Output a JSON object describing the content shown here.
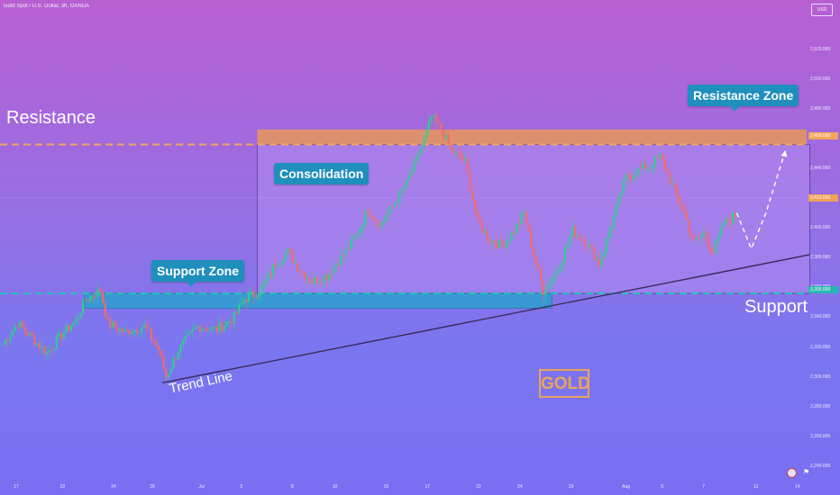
{
  "symbol_title": "Gold Spot / U.S. Dollar, 3h, OANDA",
  "currency_badge": "USD",
  "colors": {
    "bg_top": "#b85fd2",
    "bg_bottom": "#7b6ef2",
    "resistance_zone": "#e8975a",
    "support_zone": "#2b9fd0",
    "consolidation_fill": "#b38cf3",
    "candle_up": "#2ecf8f",
    "candle_down": "#f26b6b",
    "dash_resistance": "#f2a65e",
    "dash_support": "#27c0b8"
  },
  "annotations": {
    "resistance": "Resistance",
    "support": "Support",
    "consolidation": "Consolidation",
    "support_zone": "Support Zone",
    "resistance_zone": "Resistance Zone",
    "trend_line": "Trend Line",
    "gold": "GOLD"
  },
  "price_tags": {
    "resistance_price": "2,450.000",
    "current_price": "2,410.000",
    "support_price": "2,355.000"
  },
  "chart_data": {
    "type": "candlestick",
    "ylim": [
      2240,
      2530
    ],
    "y_ticks": [
      {
        "value": 2520,
        "label": "2,520.000"
      },
      {
        "value": 2500,
        "label": "2,500.000"
      },
      {
        "value": 2480,
        "label": "2,480.000"
      },
      {
        "value": 2460,
        "label": "2,460.000"
      },
      {
        "value": 2440,
        "label": "2,440.000"
      },
      {
        "value": 2420,
        "label": "2,420.000"
      },
      {
        "value": 2400,
        "label": "2,400.000"
      },
      {
        "value": 2380,
        "label": "2,380.000"
      },
      {
        "value": 2360,
        "label": "2,360.000"
      },
      {
        "value": 2340,
        "label": "2,340.000"
      },
      {
        "value": 2320,
        "label": "2,320.000"
      },
      {
        "value": 2300,
        "label": "2,300.000"
      },
      {
        "value": 2280,
        "label": "2,280.000"
      },
      {
        "value": 2260,
        "label": "2,260.000"
      },
      {
        "value": 2240,
        "label": "2,240.000"
      }
    ],
    "x_ticks": [
      {
        "bar": 6,
        "label": "17"
      },
      {
        "bar": 25,
        "label": "19"
      },
      {
        "bar": 46,
        "label": "24"
      },
      {
        "bar": 62,
        "label": "26"
      },
      {
        "bar": 82,
        "label": "Jul"
      },
      {
        "bar": 99,
        "label": "3"
      },
      {
        "bar": 120,
        "label": "8"
      },
      {
        "bar": 137,
        "label": "10"
      },
      {
        "bar": 158,
        "label": "15"
      },
      {
        "bar": 175,
        "label": "17"
      },
      {
        "bar": 196,
        "label": "22"
      },
      {
        "bar": 213,
        "label": "24"
      },
      {
        "bar": 234,
        "label": "29"
      },
      {
        "bar": 256,
        "label": "Aug"
      },
      {
        "bar": 272,
        "label": "5"
      },
      {
        "bar": 289,
        "label": "7"
      },
      {
        "bar": 310,
        "label": "12"
      },
      {
        "bar": 327,
        "label": "14"
      }
    ],
    "anchors": [
      [
        0,
        2322
      ],
      [
        6,
        2336
      ],
      [
        12,
        2326
      ],
      [
        18,
        2316
      ],
      [
        25,
        2330
      ],
      [
        30,
        2338
      ],
      [
        34,
        2352
      ],
      [
        40,
        2358
      ],
      [
        43,
        2336
      ],
      [
        50,
        2330
      ],
      [
        58,
        2334
      ],
      [
        64,
        2318
      ],
      [
        67,
        2300
      ],
      [
        72,
        2318
      ],
      [
        80,
        2334
      ],
      [
        88,
        2332
      ],
      [
        95,
        2340
      ],
      [
        99,
        2352
      ],
      [
        106,
        2358
      ],
      [
        112,
        2376
      ],
      [
        117,
        2384
      ],
      [
        122,
        2372
      ],
      [
        127,
        2364
      ],
      [
        133,
        2368
      ],
      [
        140,
        2382
      ],
      [
        145,
        2394
      ],
      [
        150,
        2412
      ],
      [
        155,
        2402
      ],
      [
        160,
        2414
      ],
      [
        166,
        2430
      ],
      [
        172,
        2454
      ],
      [
        176,
        2474
      ],
      [
        180,
        2466
      ],
      [
        184,
        2452
      ],
      [
        190,
        2444
      ],
      [
        195,
        2404
      ],
      [
        200,
        2392
      ],
      [
        205,
        2388
      ],
      [
        210,
        2398
      ],
      [
        214,
        2410
      ],
      [
        218,
        2382
      ],
      [
        222,
        2358
      ],
      [
        228,
        2372
      ],
      [
        234,
        2398
      ],
      [
        240,
        2390
      ],
      [
        245,
        2376
      ],
      [
        250,
        2402
      ],
      [
        256,
        2434
      ],
      [
        260,
        2438
      ],
      [
        266,
        2442
      ],
      [
        270,
        2448
      ],
      [
        273,
        2436
      ],
      [
        276,
        2424
      ],
      [
        280,
        2410
      ],
      [
        284,
        2390
      ],
      [
        288,
        2396
      ],
      [
        292,
        2384
      ],
      [
        296,
        2402
      ],
      [
        302,
        2410
      ]
    ],
    "zones": {
      "resistance": {
        "y_top": 2466,
        "y_bottom": 2456
      },
      "support": {
        "y_top": 2356,
        "y_bottom": 2346
      },
      "consolidation": {
        "y_top": 2456,
        "y_bottom": 2356
      }
    },
    "trend_line": {
      "from": [
        66,
        2296
      ],
      "to": [
        332,
        2382
      ]
    },
    "projection": [
      [
        302,
        2410
      ],
      [
        308,
        2386
      ],
      [
        314,
        2410
      ],
      [
        322,
        2452
      ]
    ]
  }
}
